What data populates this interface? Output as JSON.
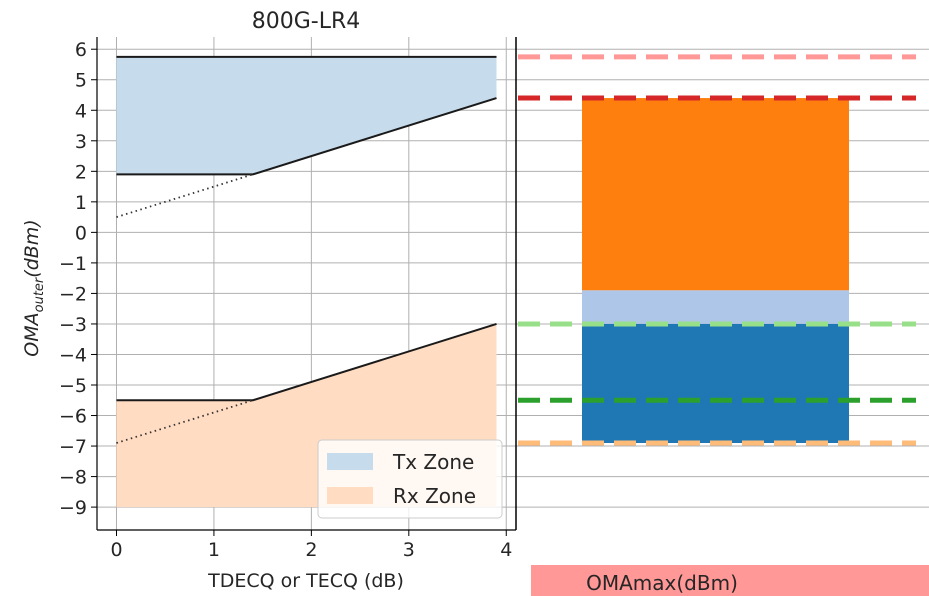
{
  "chart_data": [
    {
      "type": "area",
      "title": "800G-LR4",
      "xlabel": "TDECQ or TECQ (dB)",
      "ylabel_main": "OMA",
      "ylabel_sub": "outer",
      "ylabel_unit": "(dBm)",
      "xlim": [
        -0.2,
        4.1
      ],
      "ylim": [
        -9.75,
        6.4
      ],
      "x_ticks": [
        0,
        1,
        2,
        3,
        4
      ],
      "y_ticks": [
        6,
        5,
        4,
        3,
        2,
        1,
        0,
        -1,
        -2,
        -3,
        -4,
        -5,
        -6,
        -7,
        -8,
        -9
      ],
      "grid": true,
      "legend_position": "lower-right",
      "legend": [
        "Tx Zone",
        "Rx Zone"
      ],
      "series": [
        {
          "name": "Tx Zone",
          "fill": "#c6dcec",
          "x": [
            0,
            1.4,
            3.9
          ],
          "upper": [
            5.75,
            5.75,
            5.75
          ],
          "lower": [
            1.9,
            1.9,
            4.4
          ]
        },
        {
          "name": "Rx Zone",
          "fill": "#ffdcc2",
          "x": [
            0,
            1.4,
            3.9
          ],
          "upper": [
            -5.5,
            -5.5,
            -3.0
          ],
          "lower": [
            -9,
            -9,
            -9
          ]
        }
      ],
      "dotted_extensions": [
        {
          "x": [
            0,
            1.4
          ],
          "y": [
            0.5,
            1.9
          ]
        },
        {
          "x": [
            0,
            1.4
          ],
          "y": [
            -6.9,
            -5.5
          ]
        }
      ]
    },
    {
      "type": "bar",
      "xlabel": "OMAmax(dBm)",
      "ylim": [
        -9.75,
        6.4
      ],
      "bars": [
        {
          "bottom": -1.9,
          "top": 4.4,
          "color": "#ff7f0e"
        },
        {
          "bottom": -3.0,
          "top": -1.9,
          "color": "#aec7e8"
        },
        {
          "bottom": -6.9,
          "top": -3.0,
          "color": "#1f77b4"
        }
      ],
      "reference_lines": [
        {
          "y": 5.75,
          "color": "#ff9896"
        },
        {
          "y": 4.4,
          "color": "#d62728"
        },
        {
          "y": -3.0,
          "color": "#98df8a"
        },
        {
          "y": -5.5,
          "color": "#2ca02c"
        },
        {
          "y": -6.9,
          "color": "#ffbb78"
        }
      ],
      "label_box_color": "#ff9896"
    }
  ]
}
